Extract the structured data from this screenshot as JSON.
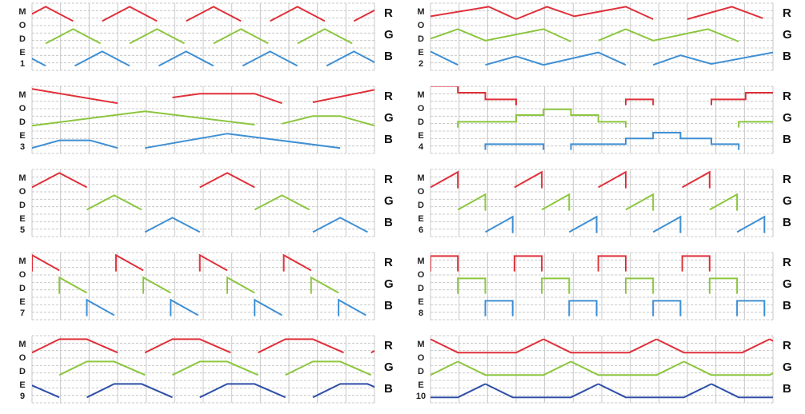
{
  "colors": {
    "R": "#e0303a",
    "G": "#8cc63f",
    "B": "#3f8fd4",
    "B_dark": "#2f4fa8",
    "grid": "#c8c8c8"
  },
  "mode_word": [
    "M",
    "O",
    "D",
    "E"
  ],
  "channel_labels": [
    "R",
    "G",
    "B"
  ],
  "modes": [
    {
      "id": "mode-1",
      "number": "1",
      "shape": "triangle"
    },
    {
      "id": "mode-2",
      "number": "2",
      "shape": "slow-ramp"
    },
    {
      "id": "mode-3",
      "number": "3",
      "shape": "long-fade"
    },
    {
      "id": "mode-4",
      "number": "4",
      "shape": "step"
    },
    {
      "id": "mode-5",
      "number": "5",
      "shape": "triangle-sequential"
    },
    {
      "id": "mode-6",
      "number": "6",
      "shape": "sawtooth-up"
    },
    {
      "id": "mode-7",
      "number": "7",
      "shape": "sawtooth-down"
    },
    {
      "id": "mode-8",
      "number": "8",
      "shape": "square"
    },
    {
      "id": "mode-9",
      "number": "9",
      "shape": "trapezoid"
    },
    {
      "id": "mode-10",
      "number": "10",
      "shape": "trapezoid-inverted"
    }
  ]
}
